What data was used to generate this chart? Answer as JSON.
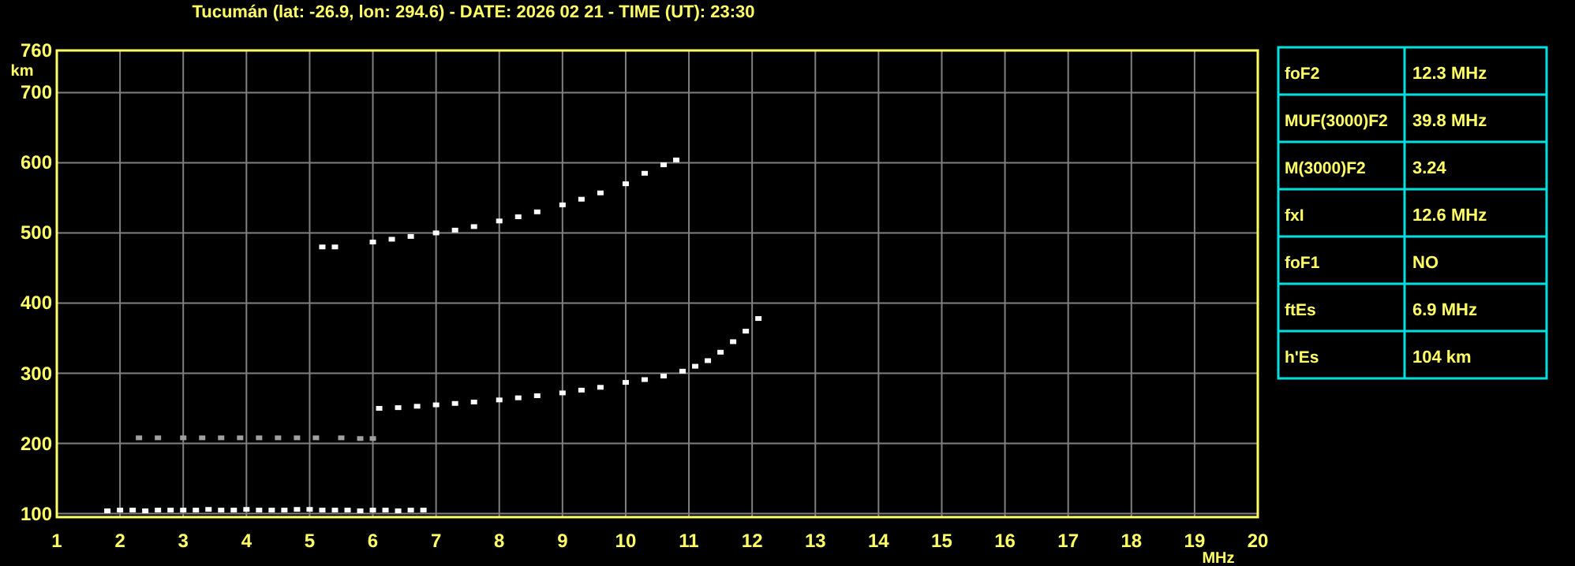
{
  "chart_data": [
    {
      "type": "scatter",
      "title": "Tucumán (lat: -26.9, lon: 294.6) - DATE: 2026 02 21 - TIME (UT): 23:30",
      "xlabel": "MHz",
      "ylabel": "km",
      "xlim": [
        1,
        20
      ],
      "ylim": [
        95,
        760
      ],
      "xticks": [
        1,
        2,
        3,
        4,
        5,
        6,
        7,
        8,
        9,
        10,
        11,
        12,
        13,
        14,
        15,
        16,
        17,
        18,
        19,
        20
      ],
      "yticks": [
        100,
        200,
        300,
        400,
        500,
        600,
        700,
        760
      ],
      "grid": true,
      "marker": "square",
      "series": [
        {
          "color": "#ffffff",
          "x": [
            1.8,
            2.0,
            2.2,
            2.4,
            2.6,
            2.8,
            3.0,
            3.2,
            3.4,
            3.6,
            3.8,
            4.0,
            4.2,
            4.4,
            4.6,
            4.8,
            5.0,
            5.2,
            5.4,
            5.6,
            5.8,
            6.0,
            6.2,
            6.4,
            6.6,
            6.8
          ],
          "values": [
            104,
            105,
            105,
            104,
            105,
            105,
            105,
            105,
            106,
            105,
            105,
            106,
            105,
            105,
            105,
            106,
            106,
            105,
            105,
            105,
            104,
            105,
            105,
            104,
            105,
            105
          ]
        },
        {
          "color": "#a0a0a0",
          "x": [
            2.3,
            2.6,
            3.0,
            3.3,
            3.6,
            3.9,
            4.2,
            4.5,
            4.8,
            5.1,
            5.5,
            5.8,
            6.0
          ],
          "values": [
            208,
            208,
            208,
            208,
            208,
            208,
            208,
            208,
            208,
            208,
            208,
            207,
            207
          ]
        },
        {
          "color": "#ffffff",
          "x": [
            6.1,
            6.4,
            6.7,
            7.0,
            7.3,
            7.6,
            8.0,
            8.3,
            8.6,
            9.0,
            9.3,
            9.6,
            10.0,
            10.3,
            10.6,
            10.9,
            11.1,
            11.3,
            11.5,
            11.7,
            11.9,
            12.1
          ],
          "values": [
            250,
            251,
            253,
            255,
            257,
            259,
            262,
            265,
            268,
            272,
            276,
            280,
            287,
            291,
            296,
            303,
            310,
            318,
            330,
            345,
            360,
            378
          ]
        },
        {
          "color": "#ffffff",
          "x": [
            5.2,
            5.4,
            6.0,
            6.3,
            6.6,
            7.0,
            7.3,
            7.6,
            8.0,
            8.3,
            8.6,
            9.0,
            9.3,
            9.6,
            10.0,
            10.3,
            10.6,
            10.8
          ],
          "values": [
            480,
            480,
            487,
            491,
            495,
            500,
            504,
            509,
            517,
            523,
            530,
            540,
            548,
            557,
            570,
            585,
            597,
            604
          ]
        }
      ]
    },
    {
      "type": "other",
      "categories": [
        "foF2",
        "MUF(3000)F2",
        "M(3000)F2",
        "fxI",
        "foF1",
        "ftEs",
        "h'Es"
      ],
      "value_labels": [
        "12.3 MHz",
        "39.8 MHz",
        "3.24",
        "12.6 MHz",
        "NO",
        "6.9 MHz",
        "104 km"
      ]
    }
  ]
}
